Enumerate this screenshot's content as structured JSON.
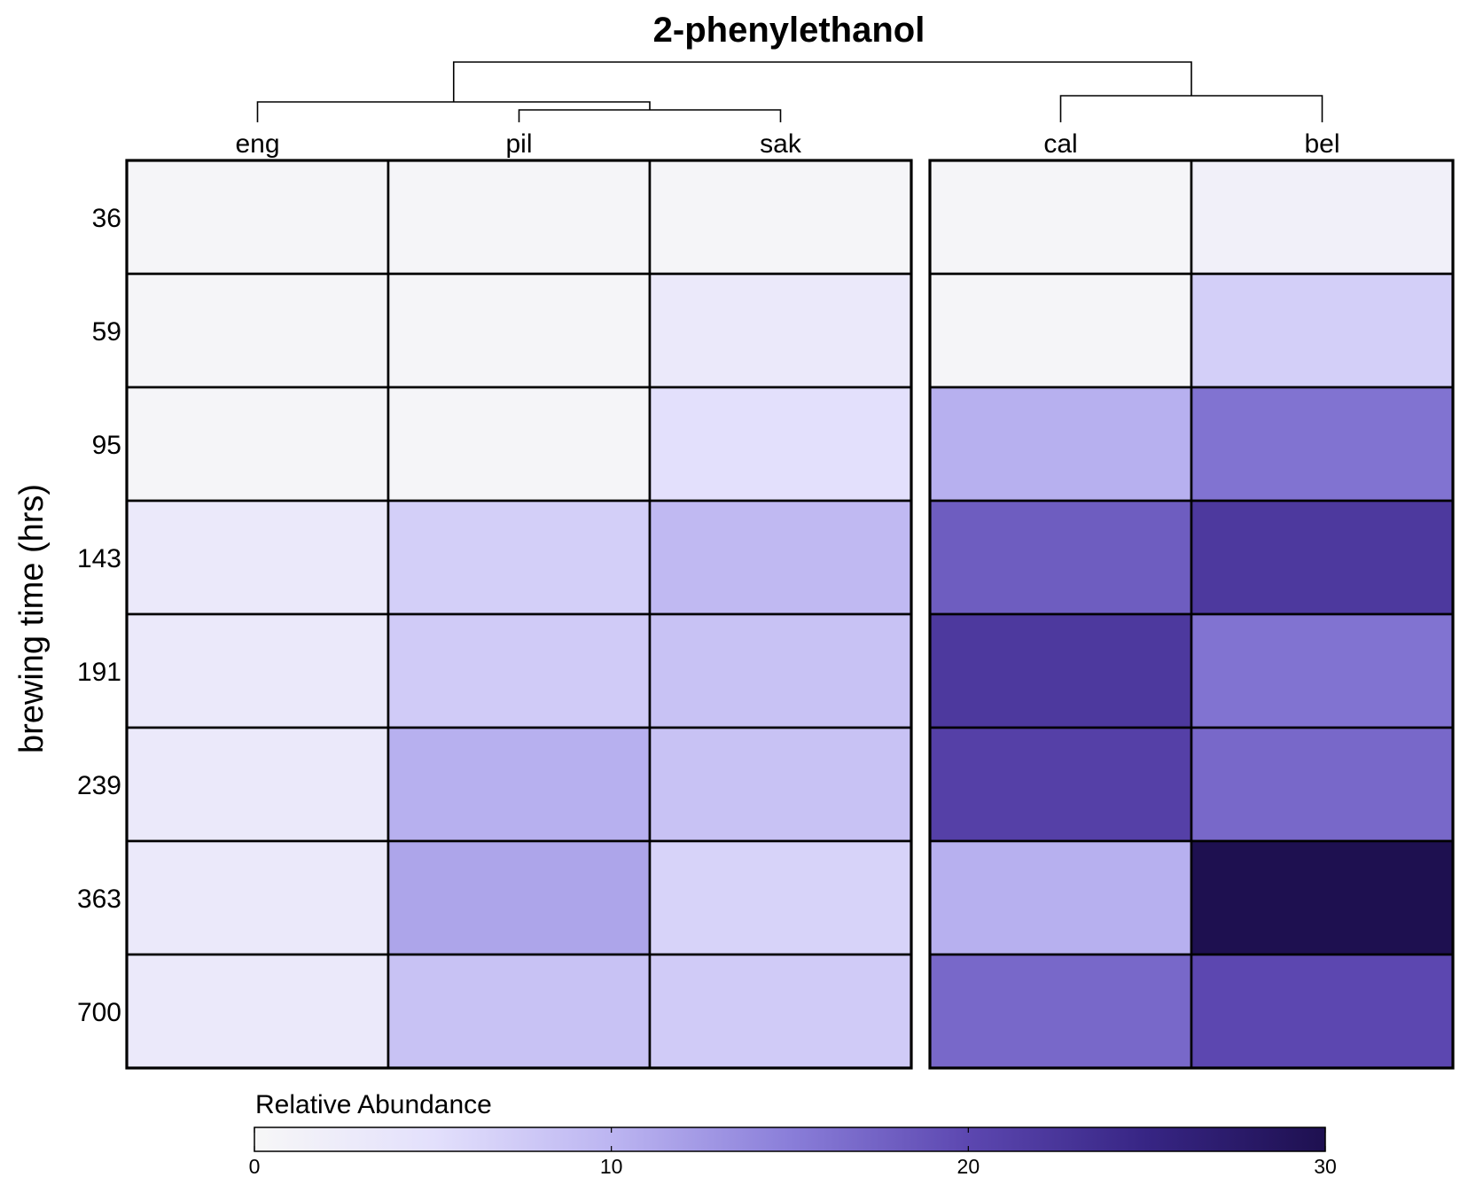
{
  "chart_data": {
    "type": "heatmap",
    "title": "2-phenylethanol",
    "ylabel": "brewing time (hrs)",
    "columns": [
      "eng",
      "pil",
      "sak",
      "cal",
      "bel"
    ],
    "column_groups": [
      [
        "eng",
        "pil",
        "sak"
      ],
      [
        "cal",
        "bel"
      ]
    ],
    "rows": [
      "36",
      "59",
      "95",
      "143",
      "191",
      "239",
      "363",
      "700"
    ],
    "values": [
      [
        0.5,
        0.5,
        0.5,
        0.5,
        1.5
      ],
      [
        0.5,
        0.5,
        3.0,
        0.5,
        7.0
      ],
      [
        0.5,
        0.5,
        5.0,
        10.5,
        16.0
      ],
      [
        3.0,
        7.0,
        9.5,
        18.0,
        22.0
      ],
      [
        3.0,
        7.5,
        8.5,
        22.0,
        16.0
      ],
      [
        3.0,
        10.5,
        8.5,
        21.0,
        17.0
      ],
      [
        3.0,
        11.5,
        6.5,
        10.5,
        30.0
      ],
      [
        3.0,
        8.5,
        7.5,
        17.0,
        20.0
      ]
    ],
    "dendrogram": "((eng,(pil,sak)),(cal,bel))",
    "colorbar": {
      "title": "Relative Abundance",
      "min": 0,
      "max": 30,
      "ticks": [
        0,
        10,
        20,
        30
      ],
      "colors": [
        "#f7f7f7",
        "#e3e0fc",
        "#bcb5f1",
        "#8a7ed9",
        "#5c47b0",
        "#372584",
        "#1e1050"
      ]
    }
  }
}
